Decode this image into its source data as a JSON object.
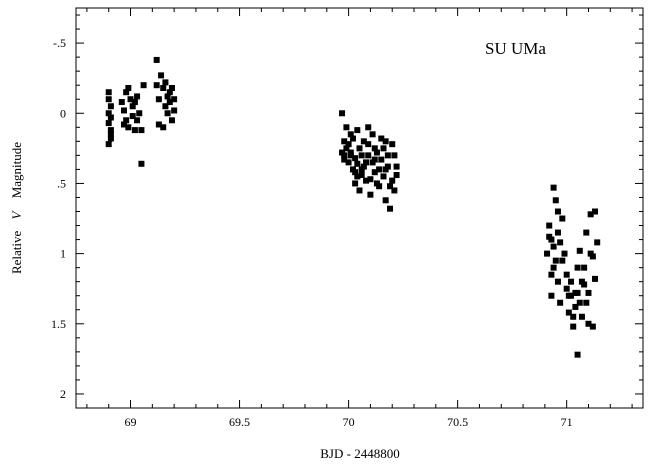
{
  "chart_data": {
    "type": "scatter",
    "title": "",
    "annotation": "SU UMa",
    "xlabel": "BJD - 2448800",
    "ylabel": {
      "prefix": "Relative",
      "italic": "V",
      "suffix": "Magnitude"
    },
    "xlim": [
      68.75,
      71.35
    ],
    "ylim": [
      2.1,
      -0.75
    ],
    "y_inverted": true,
    "grid": false,
    "legend": "none",
    "x_ticks": [
      {
        "value": 69,
        "label": "69"
      },
      {
        "value": 69.5,
        "label": "69.5"
      },
      {
        "value": 70,
        "label": "70"
      },
      {
        "value": 70.5,
        "label": "70.5"
      },
      {
        "value": 71,
        "label": "71"
      }
    ],
    "y_ticks": [
      {
        "value": -0.5,
        "label": "-.5"
      },
      {
        "value": 0,
        "label": "0"
      },
      {
        "value": 0.5,
        "label": ".5"
      },
      {
        "value": 1,
        "label": "1"
      },
      {
        "value": 1.5,
        "label": "1.5"
      },
      {
        "value": 2,
        "label": "2"
      }
    ],
    "marker_color": "#000000",
    "series": [
      {
        "x": [
          68.9,
          68.9,
          68.9,
          68.91,
          68.9,
          68.91,
          68.91,
          68.91,
          68.9,
          68.91,
          68.96,
          68.97,
          68.97,
          68.98,
          68.98,
          68.99,
          68.99,
          69.0,
          69.01,
          69.01,
          69.02,
          69.02,
          69.03,
          69.03,
          69.04,
          69.05,
          69.05,
          69.06,
          69.12,
          69.12,
          69.13,
          69.13,
          69.14,
          69.15,
          69.15,
          69.16,
          69.16,
          69.17,
          69.17,
          69.18,
          69.18,
          69.19,
          69.19,
          69.2,
          69.2
        ],
        "y": [
          -0.15,
          -0.1,
          0.0,
          0.03,
          0.07,
          0.12,
          0.15,
          0.18,
          0.22,
          -0.05,
          -0.08,
          0.08,
          -0.02,
          0.05,
          -0.15,
          -0.18,
          0.1,
          -0.1,
          -0.05,
          0.02,
          0.12,
          -0.08,
          0.05,
          -0.12,
          0.0,
          0.12,
          0.36,
          -0.2,
          -0.38,
          -0.2,
          -0.1,
          0.08,
          -0.27,
          -0.18,
          0.1,
          -0.05,
          -0.22,
          -0.12,
          0.0,
          -0.08,
          -0.15,
          0.05,
          -0.18,
          -0.02,
          -0.1
        ]
      },
      {
        "x": [
          69.97,
          69.98,
          69.98,
          69.99,
          69.99,
          70.0,
          70.01,
          70.01,
          70.02,
          70.03,
          70.04,
          70.05,
          70.05,
          70.06,
          70.07,
          70.08,
          70.09,
          70.1,
          70.11,
          70.12,
          70.13,
          70.14,
          70.15,
          70.16,
          70.17,
          70.18,
          70.19,
          70.2,
          70.21,
          70.22,
          69.97,
          69.98,
          70.0,
          70.02,
          70.03,
          70.04,
          70.06,
          70.07,
          70.09,
          70.1,
          70.12,
          70.13,
          70.15,
          70.17,
          70.18,
          70.2,
          70.21,
          70.22,
          70.01,
          70.04,
          70.08,
          70.11,
          70.14,
          70.16,
          70.19,
          70.06,
          70.12,
          70.03,
          70.17,
          70.09
        ],
        "y": [
          0.0,
          0.2,
          0.3,
          0.25,
          0.1,
          0.35,
          0.28,
          0.15,
          0.4,
          0.32,
          0.45,
          0.25,
          0.55,
          0.3,
          0.38,
          0.48,
          0.22,
          0.58,
          0.35,
          0.42,
          0.28,
          0.52,
          0.33,
          0.45,
          0.62,
          0.38,
          0.68,
          0.48,
          0.3,
          0.38,
          0.28,
          0.33,
          0.22,
          0.18,
          0.42,
          0.36,
          0.44,
          0.2,
          0.3,
          0.47,
          0.25,
          0.5,
          0.18,
          0.4,
          0.3,
          0.22,
          0.55,
          0.44,
          0.3,
          0.12,
          0.35,
          0.15,
          0.4,
          0.25,
          0.52,
          0.4,
          0.33,
          0.5,
          0.2,
          0.1
        ]
      },
      {
        "x": [
          70.91,
          70.92,
          70.93,
          70.93,
          70.94,
          70.94,
          70.95,
          70.96,
          70.96,
          70.97,
          70.98,
          70.99,
          71.0,
          71.01,
          71.02,
          71.03,
          71.04,
          71.05,
          71.05,
          71.06,
          71.07,
          71.08,
          71.09,
          71.1,
          71.11,
          71.12,
          71.13,
          71.14,
          70.92,
          70.94,
          70.96,
          70.98,
          71.0,
          71.02,
          71.04,
          71.06,
          71.08,
          71.1,
          71.12,
          71.13,
          70.95,
          70.97,
          71.01,
          71.03,
          71.07,
          71.09,
          71.11,
          70.93,
          71.05
        ],
        "y": [
          1.0,
          0.8,
          0.9,
          1.3,
          0.53,
          1.1,
          0.62,
          1.2,
          0.85,
          1.35,
          0.75,
          1.0,
          1.25,
          1.42,
          1.3,
          1.52,
          1.38,
          1.72,
          1.1,
          0.98,
          1.45,
          1.22,
          0.85,
          1.5,
          0.72,
          1.02,
          0.7,
          0.92,
          0.88,
          0.95,
          0.7,
          1.05,
          1.15,
          1.2,
          1.28,
          1.35,
          1.1,
          1.28,
          1.52,
          1.18,
          1.05,
          0.92,
          1.3,
          1.45,
          1.2,
          1.35,
          1.0,
          1.15,
          1.28
        ]
      }
    ]
  }
}
